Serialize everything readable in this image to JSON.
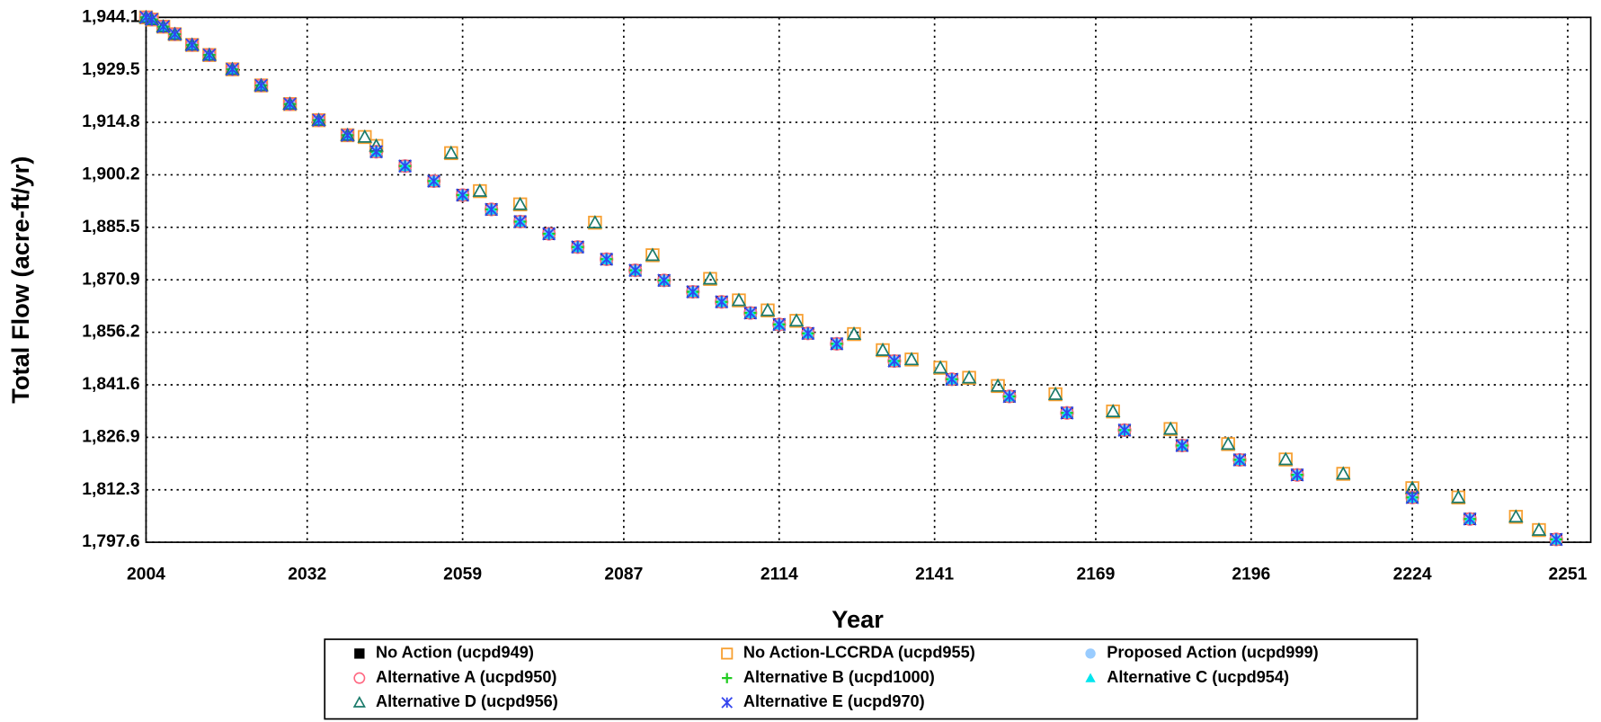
{
  "chart_data": {
    "type": "scatter",
    "xlabel": "Year",
    "ylabel": "Total Flow (acre-ft/yr)",
    "xlim": [
      2004,
      2255
    ],
    "ylim": [
      1797.6,
      1944.1
    ],
    "xticks": [
      2004,
      2032,
      2059,
      2087,
      2114,
      2141,
      2169,
      2196,
      2224,
      2251
    ],
    "yticks": [
      {
        "value": 1797.6,
        "label": "1,797.6"
      },
      {
        "value": 1812.25,
        "label": "1,812.3"
      },
      {
        "value": 1826.9,
        "label": "1,826.9"
      },
      {
        "value": 1841.55,
        "label": "1,841.6"
      },
      {
        "value": 1856.2,
        "label": "1,856.2"
      },
      {
        "value": 1870.85,
        "label": "1,870.9"
      },
      {
        "value": 1885.5,
        "label": "1,885.5"
      },
      {
        "value": 1900.15,
        "label": "1,900.2"
      },
      {
        "value": 1914.8,
        "label": "1,914.8"
      },
      {
        "value": 1929.45,
        "label": "1,929.5"
      },
      {
        "value": 1944.1,
        "label": "1,944.1"
      }
    ],
    "grid": true,
    "legend": "bottom",
    "series": [
      {
        "name": "No Action (ucpd949)",
        "color": "#000000",
        "marker": "square-filled",
        "x": [
          2004,
          2005,
          2007,
          2009,
          2012,
          2015,
          2019,
          2024,
          2029,
          2034,
          2039,
          2044,
          2049,
          2054,
          2059,
          2064,
          2069,
          2074,
          2079,
          2084,
          2089,
          2094,
          2099,
          2104,
          2109,
          2114,
          2119,
          2124,
          2134,
          2144,
          2154,
          2164,
          2174,
          2184,
          2194,
          2204,
          2224,
          2234,
          2249
        ],
        "values": [
          1944.1,
          1943.5,
          1941.5,
          1939.4,
          1936.4,
          1933.6,
          1929.6,
          1925.1,
          1919.9,
          1915.4,
          1911.2,
          1906.6,
          1902.6,
          1898.4,
          1894.5,
          1890.5,
          1887.1,
          1883.7,
          1880.0,
          1876.6,
          1873.5,
          1870.7,
          1867.5,
          1864.7,
          1861.6,
          1858.4,
          1855.9,
          1853.0,
          1848.2,
          1843.1,
          1838.3,
          1833.7,
          1828.9,
          1824.6,
          1820.6,
          1816.4,
          1810.1,
          1804.1,
          1798.4
        ]
      },
      {
        "name": "No Action-LCCRDA (ucpd955)",
        "color": "#f7a032",
        "marker": "square-open",
        "x": [
          2004,
          2005,
          2007,
          2009,
          2012,
          2015,
          2019,
          2024,
          2029,
          2034,
          2039,
          2042,
          2044,
          2057,
          2062,
          2069,
          2082,
          2092,
          2102,
          2107,
          2112,
          2117,
          2127,
          2132,
          2137,
          2142,
          2147,
          2152,
          2162,
          2172,
          2182,
          2192,
          2202,
          2212,
          2224,
          2232,
          2242,
          2246
        ],
        "values": [
          1944.1,
          1943.5,
          1941.5,
          1939.4,
          1936.4,
          1933.6,
          1929.6,
          1925.1,
          1919.9,
          1915.4,
          1911.2,
          1910.7,
          1908.2,
          1906.2,
          1895.6,
          1891.9,
          1886.8,
          1877.7,
          1871.1,
          1865.1,
          1862.3,
          1859.4,
          1855.7,
          1851.2,
          1848.6,
          1846.3,
          1843.5,
          1841.2,
          1838.9,
          1834.1,
          1829.2,
          1825.0,
          1820.7,
          1816.7,
          1812.7,
          1810.1,
          1804.7,
          1801.0
        ]
      },
      {
        "name": "Proposed Action (ucpd999)",
        "color": "#99ccff",
        "marker": "circle-filled",
        "x": [
          2004,
          2005,
          2007,
          2009,
          2012,
          2015,
          2019,
          2024,
          2029,
          2034,
          2039,
          2044,
          2049,
          2054,
          2059,
          2064,
          2069,
          2074,
          2079,
          2084,
          2089,
          2094,
          2099,
          2104,
          2109,
          2114,
          2119,
          2124,
          2134,
          2144,
          2154,
          2164,
          2174,
          2184,
          2194,
          2204,
          2224,
          2234,
          2249
        ],
        "values": [
          1944.1,
          1943.5,
          1941.5,
          1939.4,
          1936.4,
          1933.6,
          1929.6,
          1925.1,
          1919.9,
          1915.4,
          1911.2,
          1906.6,
          1902.6,
          1898.4,
          1894.5,
          1890.5,
          1887.1,
          1883.7,
          1880.0,
          1876.6,
          1873.5,
          1870.7,
          1867.5,
          1864.7,
          1861.6,
          1858.4,
          1855.9,
          1853.0,
          1848.2,
          1843.1,
          1838.3,
          1833.7,
          1828.9,
          1824.6,
          1820.6,
          1816.4,
          1810.1,
          1804.1,
          1798.4
        ]
      },
      {
        "name": "Alternative A (ucpd950)",
        "color": "#ff6680",
        "marker": "circle-open",
        "x": [
          2004,
          2005,
          2007,
          2009,
          2012,
          2015,
          2019,
          2024,
          2029,
          2034,
          2039,
          2044,
          2049,
          2054,
          2059,
          2064,
          2069,
          2074,
          2079,
          2084,
          2089,
          2094,
          2099,
          2104,
          2109,
          2114,
          2119,
          2124,
          2134,
          2144,
          2154,
          2164,
          2174,
          2184,
          2194,
          2204,
          2224,
          2234,
          2249
        ],
        "values": [
          1944.1,
          1943.5,
          1941.5,
          1939.4,
          1936.4,
          1933.6,
          1929.6,
          1925.1,
          1919.9,
          1915.4,
          1911.2,
          1906.6,
          1902.6,
          1898.4,
          1894.5,
          1890.5,
          1887.1,
          1883.7,
          1880.0,
          1876.6,
          1873.5,
          1870.7,
          1867.5,
          1864.7,
          1861.6,
          1858.4,
          1855.9,
          1853.0,
          1848.2,
          1843.1,
          1838.3,
          1833.7,
          1828.9,
          1824.6,
          1820.6,
          1816.4,
          1810.1,
          1804.1,
          1798.4
        ]
      },
      {
        "name": "Alternative B (ucpd1000)",
        "color": "#22cc22",
        "marker": "plus",
        "x": [
          2004,
          2005,
          2007,
          2009,
          2012,
          2015,
          2019,
          2024,
          2029,
          2034,
          2039,
          2044,
          2049,
          2054,
          2059,
          2064,
          2069,
          2074,
          2079,
          2084,
          2089,
          2094,
          2099,
          2104,
          2109,
          2114,
          2119,
          2124,
          2134,
          2144,
          2154,
          2164,
          2174,
          2184,
          2194,
          2204,
          2224,
          2234,
          2249
        ],
        "values": [
          1944.1,
          1943.5,
          1941.5,
          1939.4,
          1936.4,
          1933.6,
          1929.6,
          1925.1,
          1919.9,
          1915.4,
          1911.2,
          1906.6,
          1902.6,
          1898.4,
          1894.5,
          1890.5,
          1887.1,
          1883.7,
          1880.0,
          1876.6,
          1873.5,
          1870.7,
          1867.5,
          1864.7,
          1861.6,
          1858.4,
          1855.9,
          1853.0,
          1848.2,
          1843.1,
          1838.3,
          1833.7,
          1828.9,
          1824.6,
          1820.6,
          1816.4,
          1810.1,
          1804.1,
          1798.4
        ]
      },
      {
        "name": "Alternative C (ucpd954)",
        "color": "#00e5ee",
        "marker": "triangle-filled",
        "x": [
          2004,
          2005,
          2007,
          2009,
          2012,
          2015,
          2019,
          2024,
          2029,
          2034,
          2039,
          2044,
          2049,
          2054,
          2059,
          2064,
          2069,
          2074,
          2079,
          2084,
          2089,
          2094,
          2099,
          2104,
          2109,
          2114,
          2119,
          2124,
          2134,
          2144,
          2154,
          2164,
          2174,
          2184,
          2194,
          2204,
          2224,
          2234,
          2249
        ],
        "values": [
          1944.1,
          1943.5,
          1941.5,
          1939.4,
          1936.4,
          1933.6,
          1929.6,
          1925.1,
          1919.9,
          1915.4,
          1911.2,
          1906.6,
          1902.6,
          1898.4,
          1894.5,
          1890.5,
          1887.1,
          1883.7,
          1880.0,
          1876.6,
          1873.5,
          1870.7,
          1867.5,
          1864.7,
          1861.6,
          1858.4,
          1855.9,
          1853.0,
          1848.2,
          1843.1,
          1838.3,
          1833.7,
          1828.9,
          1824.6,
          1820.6,
          1816.4,
          1810.1,
          1804.1,
          1798.4
        ]
      },
      {
        "name": "Alternative D (ucpd956)",
        "color": "#1a7a6a",
        "marker": "triangle-open",
        "x": [
          2004,
          2005,
          2007,
          2009,
          2012,
          2015,
          2019,
          2024,
          2029,
          2034,
          2039,
          2042,
          2044,
          2057,
          2062,
          2069,
          2082,
          2092,
          2102,
          2107,
          2112,
          2117,
          2127,
          2132,
          2137,
          2142,
          2147,
          2152,
          2162,
          2172,
          2182,
          2192,
          2202,
          2212,
          2224,
          2232,
          2242,
          2246
        ],
        "values": [
          1944.1,
          1943.5,
          1941.5,
          1939.4,
          1936.4,
          1933.6,
          1929.6,
          1925.1,
          1919.9,
          1915.4,
          1911.2,
          1910.7,
          1908.2,
          1906.2,
          1895.6,
          1891.9,
          1886.8,
          1877.7,
          1871.1,
          1865.1,
          1862.3,
          1859.4,
          1855.7,
          1851.2,
          1848.6,
          1846.3,
          1843.5,
          1841.2,
          1838.9,
          1834.1,
          1829.2,
          1825.0,
          1820.7,
          1816.7,
          1812.7,
          1810.1,
          1804.7,
          1801.0
        ]
      },
      {
        "name": "Alternative E (ucpd970)",
        "color": "#3344ee",
        "marker": "asterisk",
        "x": [
          2004,
          2005,
          2007,
          2009,
          2012,
          2015,
          2019,
          2024,
          2029,
          2034,
          2039,
          2044,
          2049,
          2054,
          2059,
          2064,
          2069,
          2074,
          2079,
          2084,
          2089,
          2094,
          2099,
          2104,
          2109,
          2114,
          2119,
          2124,
          2134,
          2144,
          2154,
          2164,
          2174,
          2184,
          2194,
          2204,
          2224,
          2234,
          2249
        ],
        "values": [
          1944.1,
          1943.5,
          1941.5,
          1939.4,
          1936.4,
          1933.6,
          1929.6,
          1925.1,
          1919.9,
          1915.4,
          1911.2,
          1906.6,
          1902.6,
          1898.4,
          1894.5,
          1890.5,
          1887.1,
          1883.7,
          1880.0,
          1876.6,
          1873.5,
          1870.7,
          1867.5,
          1864.7,
          1861.6,
          1858.4,
          1855.9,
          1853.0,
          1848.2,
          1843.1,
          1838.3,
          1833.7,
          1828.9,
          1824.6,
          1820.6,
          1816.4,
          1810.1,
          1804.1,
          1798.4
        ]
      }
    ]
  }
}
